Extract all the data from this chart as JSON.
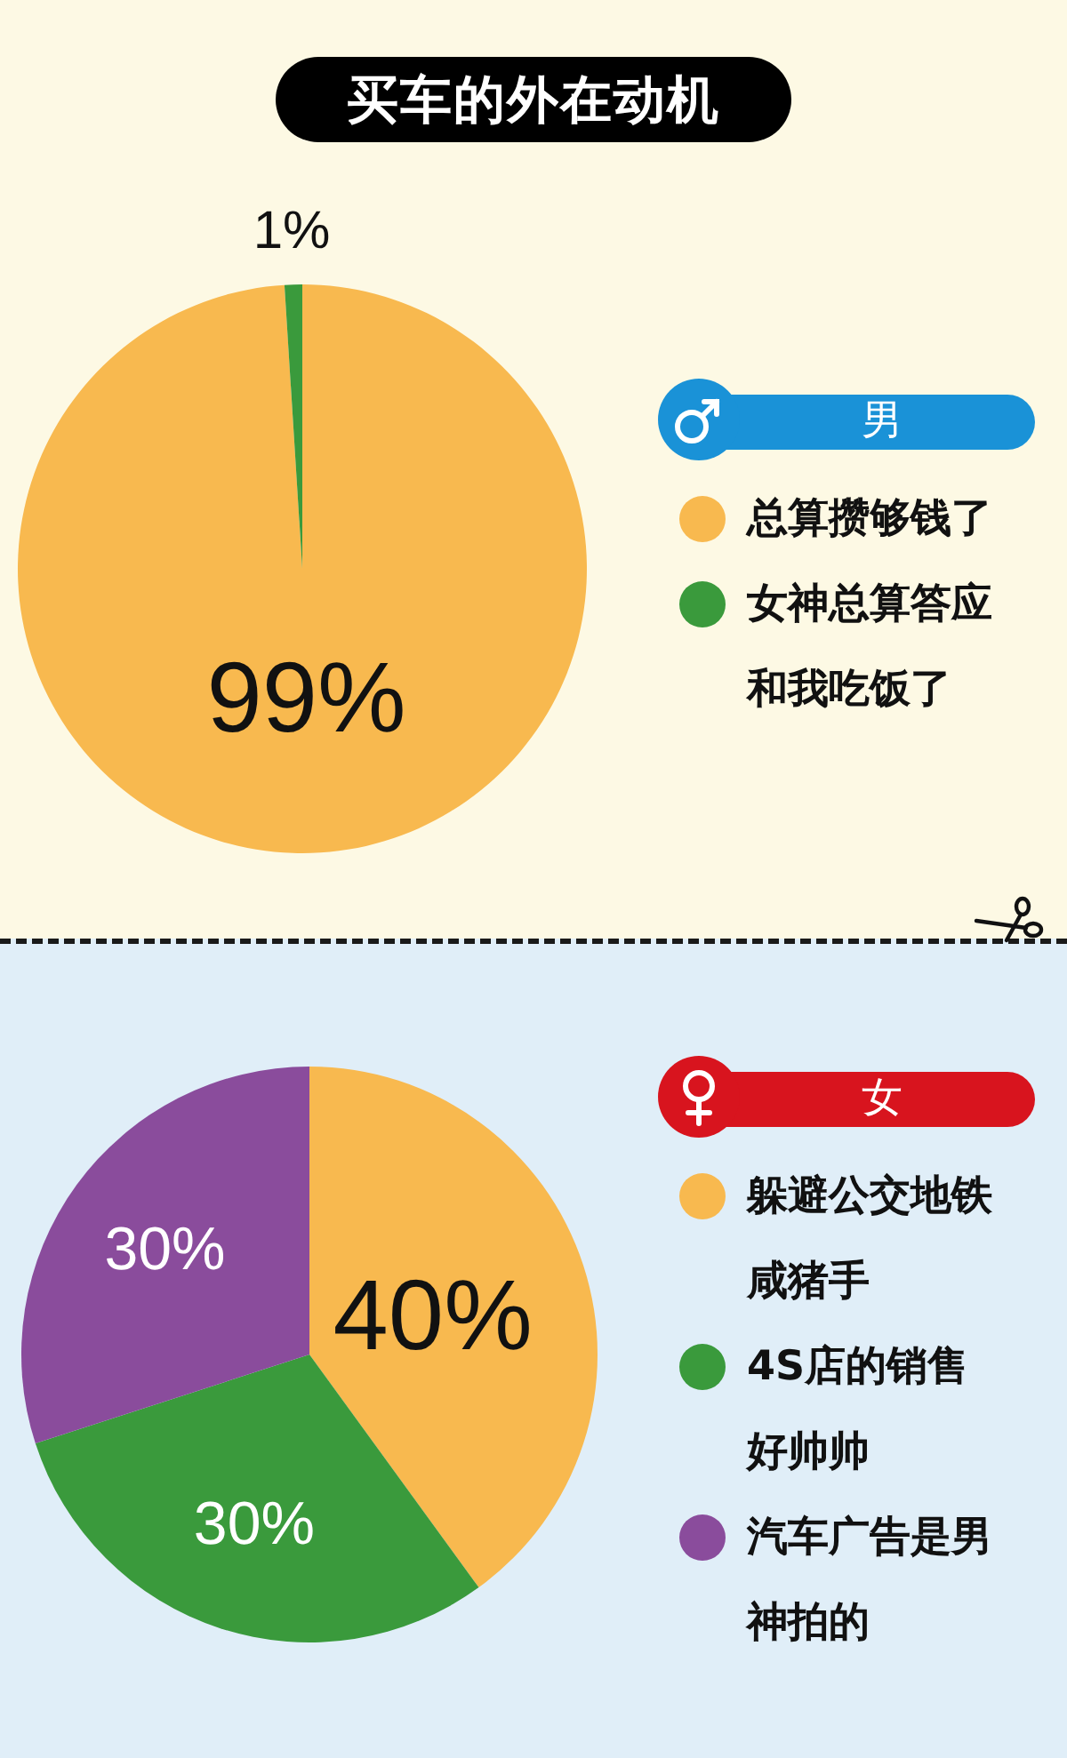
{
  "chart_data": [
    {
      "type": "pie",
      "title": "买车的外在动机",
      "legend_title": "男",
      "categories": [
        "总算攒够钱了",
        "女神总算答应和我吃饭了"
      ],
      "values": [
        99,
        1
      ],
      "colors": [
        "#f8b94f",
        "#3a9a3c"
      ],
      "value_labels": [
        "99%",
        "1%"
      ],
      "legend": "right"
    },
    {
      "type": "pie",
      "legend_title": "女",
      "categories": [
        "躲避公交地铁咸猪手",
        "4S店的销售好帅帅",
        "汽车广告是男神拍的"
      ],
      "values": [
        40,
        30,
        30
      ],
      "colors": [
        "#f8b94f",
        "#3a9a3c",
        "#8a4c9c"
      ],
      "value_labels": [
        "40%",
        "30%",
        "30%"
      ],
      "legend": "right"
    }
  ]
}
